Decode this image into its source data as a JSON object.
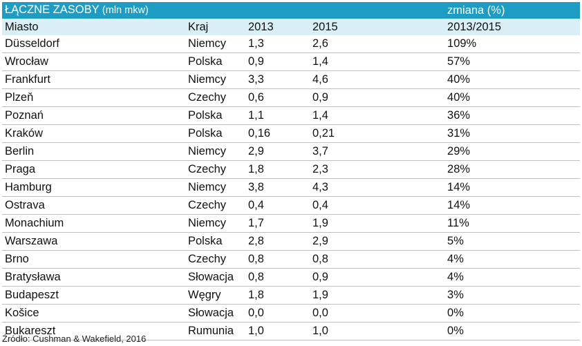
{
  "table": {
    "title": "ŁĄCZNE ZASOBY",
    "title_unit": "(mln mkw)",
    "change_title": "zmiana (%)",
    "headers": {
      "city": "Miasto",
      "country": "Kraj",
      "year1": "2013",
      "year2": "2015",
      "change": "2013/2015"
    },
    "rows": [
      {
        "city": "Düsseldorf",
        "country": "Niemcy",
        "y2013": "1,3",
        "y2015": "2,6",
        "change": "109%"
      },
      {
        "city": "Wrocław",
        "country": "Polska",
        "y2013": "0,9",
        "y2015": "1,4",
        "change": "57%"
      },
      {
        "city": "Frankfurt",
        "country": "Niemcy",
        "y2013": "3,3",
        "y2015": "4,6",
        "change": "40%"
      },
      {
        "city": "Plzeň",
        "country": "Czechy",
        "y2013": "0,6",
        "y2015": "0,9",
        "change": "40%"
      },
      {
        "city": "Poznań",
        "country": "Polska",
        "y2013": "1,1",
        "y2015": "1,4",
        "change": "36%"
      },
      {
        "city": "Kraków",
        "country": "Polska",
        "y2013": "0,16",
        "y2015": "0,21",
        "change": "31%"
      },
      {
        "city": "Berlin",
        "country": "Niemcy",
        "y2013": "2,9",
        "y2015": "3,7",
        "change": "29%"
      },
      {
        "city": "Praga",
        "country": "Czechy",
        "y2013": "1,8",
        "y2015": "2,3",
        "change": "28%"
      },
      {
        "city": "Hamburg",
        "country": "Niemcy",
        "y2013": "3,8",
        "y2015": "4,3",
        "change": "14%"
      },
      {
        "city": "Ostrava",
        "country": "Czechy",
        "y2013": "0,4",
        "y2015": "0,4",
        "change": "14%"
      },
      {
        "city": "Monachium",
        "country": "Niemcy",
        "y2013": "1,7",
        "y2015": "1,9",
        "change": "11%"
      },
      {
        "city": "Warszawa",
        "country": "Polska",
        "y2013": "2,8",
        "y2015": "2,9",
        "change": "5%"
      },
      {
        "city": "Brno",
        "country": "Czechy",
        "y2013": "0,8",
        "y2015": "0,8",
        "change": "4%"
      },
      {
        "city": "Bratysława",
        "country": "Słowacja",
        "y2013": "0,8",
        "y2015": "0,9",
        "change": "4%"
      },
      {
        "city": "Budapeszt",
        "country": "Węgry",
        "y2013": "1,8",
        "y2015": "1,9",
        "change": "3%"
      },
      {
        "city": "Košice",
        "country": "Słowacja",
        "y2013": "0,0",
        "y2015": "0,0",
        "change": "0%"
      },
      {
        "city": "Bukareszt",
        "country": "Rumunia",
        "y2013": "1,0",
        "y2015": "1,0",
        "change": "0%"
      }
    ]
  },
  "source": "Źródło: Cushman & Wakefield, 2016",
  "colors": {
    "title_bar": "#1e9cc4",
    "header_bar": "#d9eef5",
    "row_border": "#bfbfbf"
  }
}
